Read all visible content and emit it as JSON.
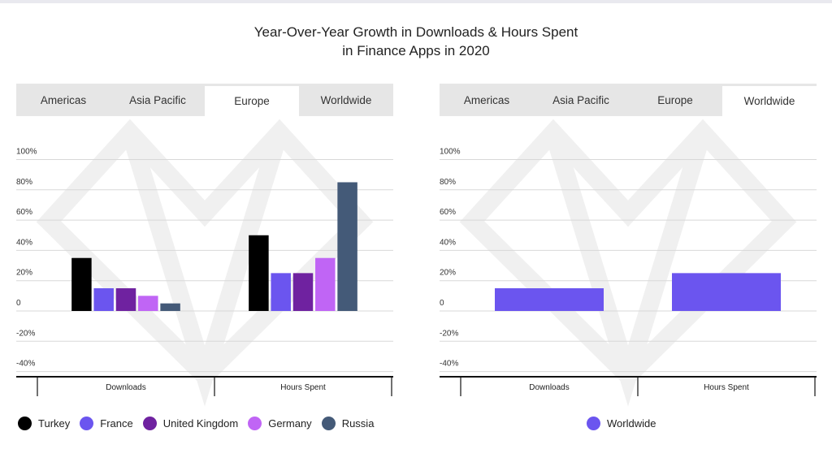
{
  "title_line1": "Year-Over-Year Growth in Downloads & Hours Spent",
  "title_line2": "in Finance Apps in 2020",
  "tabs": [
    "Americas",
    "Asia Pacific",
    "Europe",
    "Worldwide"
  ],
  "chart_data": [
    {
      "type": "bar",
      "active_tab": "Europe",
      "categories": [
        "Downloads",
        "Hours Spent"
      ],
      "ylim": [
        -40,
        100
      ],
      "yticks": [
        "100%",
        "80%",
        "60%",
        "40%",
        "20%",
        "0",
        "-20%",
        "-40%"
      ],
      "grid": true,
      "legend": "bottom",
      "series": [
        {
          "name": "Turkey",
          "color": "#000000",
          "values": [
            35,
            50
          ]
        },
        {
          "name": "France",
          "color": "#6b55ef",
          "values": [
            15,
            25
          ]
        },
        {
          "name": "United Kingdom",
          "color": "#6f22a0",
          "values": [
            15,
            25
          ]
        },
        {
          "name": "Germany",
          "color": "#c065f5",
          "values": [
            10,
            35
          ]
        },
        {
          "name": "Russia",
          "color": "#445a78",
          "values": [
            5,
            85
          ]
        }
      ]
    },
    {
      "type": "bar",
      "active_tab": "Worldwide",
      "categories": [
        "Downloads",
        "Hours Spent"
      ],
      "ylim": [
        -40,
        100
      ],
      "yticks": [
        "100%",
        "80%",
        "60%",
        "40%",
        "20%",
        "0",
        "-20%",
        "-40%"
      ],
      "grid": true,
      "legend": "bottom",
      "series": [
        {
          "name": "Worldwide",
          "color": "#6b55ef",
          "values": [
            15,
            25
          ]
        }
      ]
    }
  ]
}
